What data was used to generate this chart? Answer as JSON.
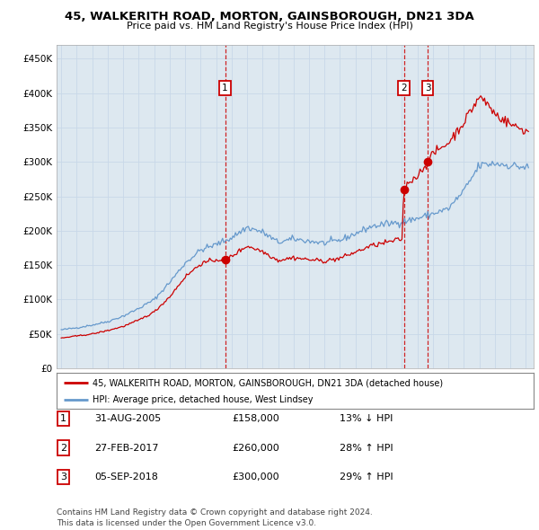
{
  "title": "45, WALKERITH ROAD, MORTON, GAINSBOROUGH, DN21 3DA",
  "subtitle": "Price paid vs. HM Land Registry's House Price Index (HPI)",
  "sale_dates_num": [
    2005.58,
    2017.12,
    2018.67
  ],
  "sale_prices": [
    158000,
    260000,
    300000
  ],
  "sale_labels": [
    "1",
    "2",
    "3"
  ],
  "legend_line1": "45, WALKERITH ROAD, MORTON, GAINSBOROUGH, DN21 3DA (detached house)",
  "legend_line2": "HPI: Average price, detached house, West Lindsey",
  "table_data": [
    [
      "1",
      "31-AUG-2005",
      "£158,000",
      "13% ↓ HPI"
    ],
    [
      "2",
      "27-FEB-2017",
      "£260,000",
      "28% ↑ HPI"
    ],
    [
      "3",
      "05-SEP-2018",
      "£300,000",
      "29% ↑ HPI"
    ]
  ],
  "footer": "Contains HM Land Registry data © Crown copyright and database right 2024.\nThis data is licensed under the Open Government Licence v3.0.",
  "red_color": "#cc0000",
  "blue_color": "#6699cc",
  "background_color": "#dde8f0",
  "grid_color": "#c8d8e8",
  "ylim": [
    0,
    470000
  ],
  "xlim_start": 1994.7,
  "xlim_end": 2025.5
}
